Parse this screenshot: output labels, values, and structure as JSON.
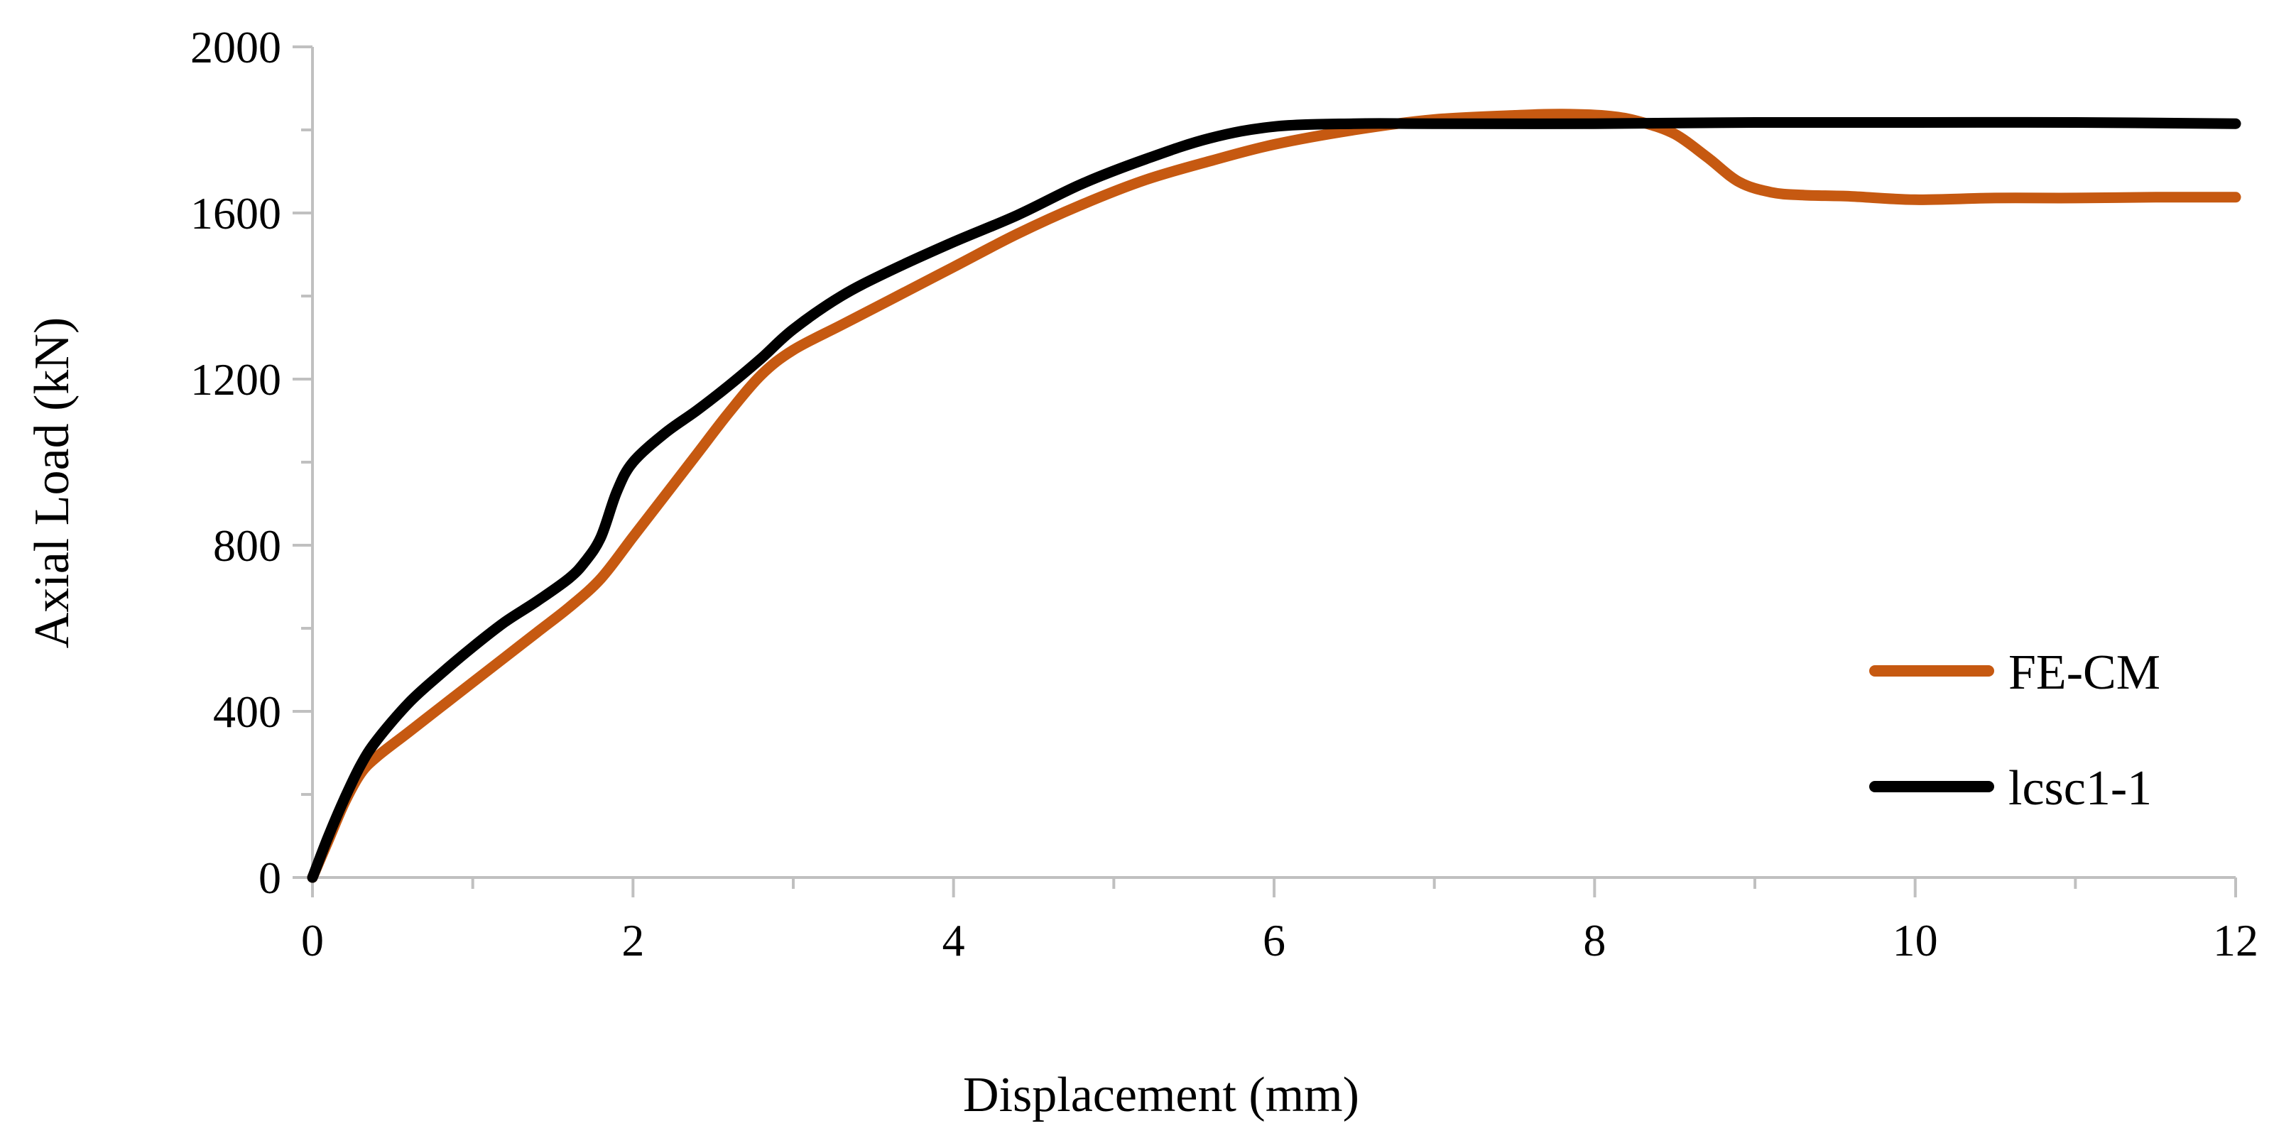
{
  "chart_data": {
    "type": "line",
    "title": "",
    "xlabel": "Displacement (mm)",
    "ylabel": "Axial Load (kN)",
    "xlim": [
      0,
      12
    ],
    "ylim": [
      0,
      2000
    ],
    "x_ticks": [
      0,
      2,
      4,
      6,
      8,
      10,
      12
    ],
    "y_ticks": [
      0,
      400,
      800,
      1200,
      1600,
      2000
    ],
    "x_tick_labels": [
      "0",
      "2",
      "4",
      "6",
      "8",
      "10",
      "12"
    ],
    "y_tick_labels": [
      "0",
      "400",
      "800",
      "1200",
      "1600",
      "2000"
    ],
    "grid": false,
    "legend_position": "right",
    "series": [
      {
        "name": "FE-CM",
        "color": "#C65911",
        "x": [
          0,
          0.1,
          0.2,
          0.3,
          0.4,
          0.6,
          0.8,
          1.0,
          1.2,
          1.4,
          1.6,
          1.8,
          2.0,
          2.2,
          2.4,
          2.6,
          2.8,
          3.0,
          3.3,
          3.6,
          4.0,
          4.4,
          4.8,
          5.2,
          5.6,
          6.0,
          6.5,
          7.0,
          7.5,
          7.8,
          8.1,
          8.3,
          8.5,
          8.7,
          8.9,
          9.1,
          9.3,
          9.6,
          10.0,
          10.5,
          11.0,
          11.5,
          12.0
        ],
        "y": [
          0,
          90,
          180,
          250,
          290,
          350,
          410,
          470,
          530,
          590,
          650,
          720,
          820,
          920,
          1020,
          1120,
          1210,
          1270,
          1330,
          1390,
          1470,
          1550,
          1620,
          1680,
          1725,
          1765,
          1800,
          1825,
          1835,
          1838,
          1833,
          1818,
          1790,
          1735,
          1675,
          1650,
          1643,
          1640,
          1632,
          1636,
          1636,
          1638,
          1638
        ]
      },
      {
        "name": "lcsc1-1",
        "color": "#000000",
        "x": [
          0,
          0.1,
          0.2,
          0.3,
          0.4,
          0.6,
          0.8,
          1.0,
          1.2,
          1.4,
          1.6,
          1.7,
          1.8,
          1.9,
          2.0,
          2.2,
          2.4,
          2.6,
          2.8,
          3.0,
          3.3,
          3.6,
          4.0,
          4.4,
          4.8,
          5.2,
          5.6,
          6.0,
          6.5,
          7.0,
          8.0,
          9.0,
          10.0,
          11.0,
          12.0
        ],
        "y": [
          0,
          100,
          190,
          270,
          330,
          420,
          490,
          555,
          615,
          665,
          720,
          760,
          820,
          930,
          1000,
          1070,
          1125,
          1185,
          1250,
          1320,
          1400,
          1460,
          1530,
          1595,
          1670,
          1730,
          1780,
          1808,
          1815,
          1815,
          1815,
          1818,
          1818,
          1818,
          1815
        ]
      }
    ]
  }
}
